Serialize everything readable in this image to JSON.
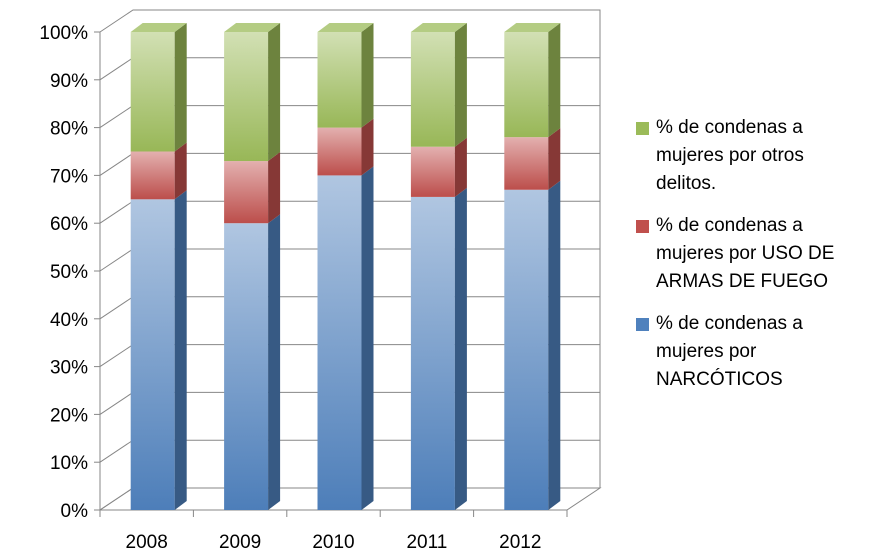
{
  "chart_data": {
    "type": "bar",
    "stacked": true,
    "three_d": true,
    "categories": [
      "2008",
      "2009",
      "2010",
      "2011",
      "2012"
    ],
    "ylim": [
      0,
      1
    ],
    "yticks": [
      "0%",
      "10%",
      "20%",
      "30%",
      "40%",
      "50%",
      "60%",
      "70%",
      "80%",
      "90%",
      "100%"
    ],
    "grid": true,
    "legend_position": "right",
    "series": [
      {
        "name": "% de condenas a mujeres por NARCÓTICOS",
        "color": "#4f81bd",
        "values": [
          0.65,
          0.6,
          0.7,
          0.655,
          0.67
        ]
      },
      {
        "name": "% de condenas a mujeres por USO DE ARMAS DE FUEGO",
        "color": "#c0504d",
        "values": [
          0.1,
          0.13,
          0.1,
          0.105,
          0.11
        ]
      },
      {
        "name": "% de condenas a mujeres por otros delitos.",
        "color": "#9bbb59",
        "values": [
          0.25,
          0.27,
          0.2,
          0.24,
          0.22
        ]
      }
    ],
    "legend": [
      {
        "lines": [
          "% de condenas a",
          "mujeres por otros",
          "delitos."
        ],
        "color": "#9bbb59"
      },
      {
        "lines": [
          "% de condenas a",
          "mujeres por USO DE",
          "ARMAS DE FUEGO"
        ],
        "color": "#c0504d"
      },
      {
        "lines": [
          "% de condenas a",
          "mujeres por",
          "NARCÓTICOS"
        ],
        "color": "#4f81bd"
      }
    ]
  }
}
